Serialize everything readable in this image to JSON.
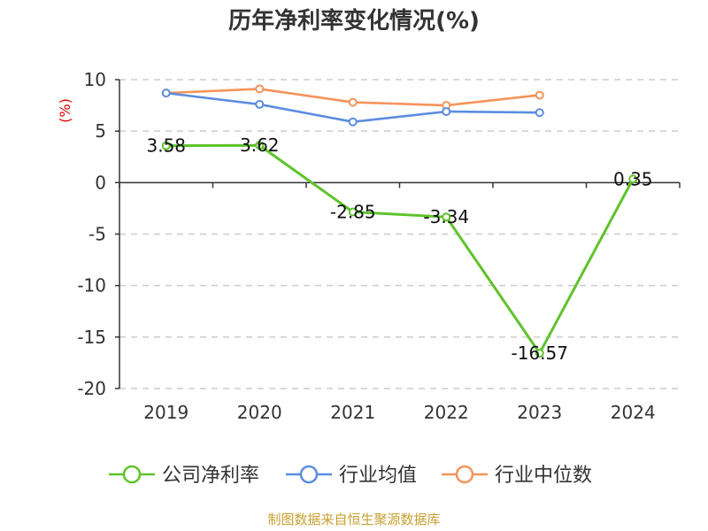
{
  "chart_data": {
    "type": "line",
    "title": "历年净利率变化情况(%)",
    "ylabel": "(%)",
    "xlabel": "",
    "categories": [
      "2019",
      "2020",
      "2021",
      "2022",
      "2023",
      "2024"
    ],
    "ylim": [
      -20,
      10
    ],
    "yticks": [
      "10",
      "5",
      "0",
      "-5",
      "-10",
      "-15",
      "-20"
    ],
    "yticks_values": [
      10,
      5,
      0,
      -5,
      -10,
      -15,
      -20
    ],
    "grid": true,
    "legend_position": "bottom",
    "series": [
      {
        "name": "公司净利率",
        "color": "#5ec32a",
        "values": [
          3.58,
          3.62,
          -2.85,
          -3.34,
          -16.57,
          0.35
        ],
        "labels": [
          "3.58",
          "3.62",
          "-2.85",
          "-3.34",
          "-16.57",
          "0.35"
        ]
      },
      {
        "name": "行业均值",
        "color": "#5b8de0",
        "values": [
          8.7,
          7.6,
          5.9,
          6.9,
          6.8,
          null
        ]
      },
      {
        "name": "行业中位数",
        "color": "#f5935b",
        "values": [
          8.7,
          9.1,
          7.8,
          7.5,
          8.5,
          null
        ]
      }
    ]
  },
  "source_text": "制图数据来自恒生聚源数据库"
}
